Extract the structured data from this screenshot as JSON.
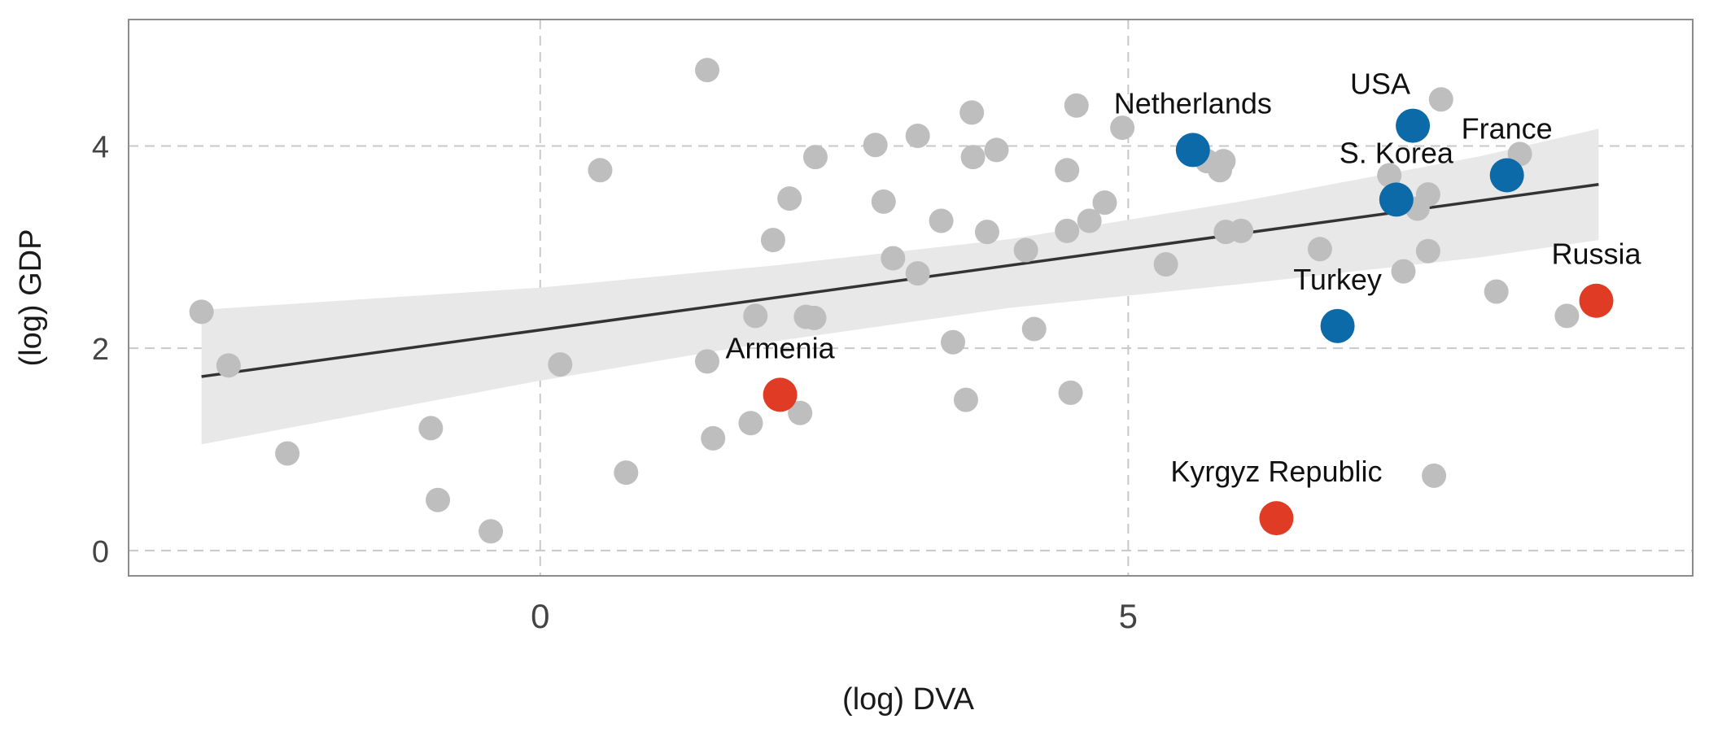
{
  "chart_data": {
    "type": "scatter",
    "title": "",
    "xlabel": "(log) DVA",
    "ylabel": "(log) GDP",
    "xlim": [
      -3.5,
      9.8
    ],
    "ylim": [
      -0.25,
      5.25
    ],
    "xticks": [
      0,
      5
    ],
    "yticks": [
      0,
      2,
      4
    ],
    "grid": true,
    "colors": {
      "background_points": "#bebebe",
      "highlight_blue": "#0d6aa8",
      "highlight_red": "#e03c25",
      "trend_line": "#333333",
      "confidence_band": "#e8e8e8"
    },
    "background_points": [
      {
        "x": -2.88,
        "y": 2.36
      },
      {
        "x": -2.65,
        "y": 1.83
      },
      {
        "x": -2.15,
        "y": 0.96
      },
      {
        "x": -0.93,
        "y": 1.21
      },
      {
        "x": -0.87,
        "y": 0.5
      },
      {
        "x": -0.42,
        "y": 0.19
      },
      {
        "x": 0.17,
        "y": 1.84
      },
      {
        "x": 0.51,
        "y": 3.76
      },
      {
        "x": 0.73,
        "y": 0.77
      },
      {
        "x": 1.42,
        "y": 4.75
      },
      {
        "x": 1.42,
        "y": 1.87
      },
      {
        "x": 1.47,
        "y": 1.11
      },
      {
        "x": 1.79,
        "y": 1.26
      },
      {
        "x": 1.83,
        "y": 2.32
      },
      {
        "x": 1.98,
        "y": 3.07
      },
      {
        "x": 2.12,
        "y": 3.48
      },
      {
        "x": 2.21,
        "y": 1.36
      },
      {
        "x": 2.26,
        "y": 2.31
      },
      {
        "x": 2.33,
        "y": 2.3
      },
      {
        "x": 2.34,
        "y": 3.89
      },
      {
        "x": 2.85,
        "y": 4.01
      },
      {
        "x": 2.92,
        "y": 3.45
      },
      {
        "x": 3.0,
        "y": 2.89
      },
      {
        "x": 3.21,
        "y": 4.1
      },
      {
        "x": 3.21,
        "y": 2.74
      },
      {
        "x": 3.41,
        "y": 3.26
      },
      {
        "x": 3.51,
        "y": 2.06
      },
      {
        "x": 3.62,
        "y": 1.49
      },
      {
        "x": 3.67,
        "y": 4.33
      },
      {
        "x": 3.68,
        "y": 3.89
      },
      {
        "x": 3.8,
        "y": 3.15
      },
      {
        "x": 3.88,
        "y": 3.96
      },
      {
        "x": 4.13,
        "y": 2.97
      },
      {
        "x": 4.2,
        "y": 2.19
      },
      {
        "x": 4.48,
        "y": 3.76
      },
      {
        "x": 4.48,
        "y": 3.16
      },
      {
        "x": 4.51,
        "y": 1.56
      },
      {
        "x": 4.56,
        "y": 4.4
      },
      {
        "x": 4.67,
        "y": 3.26
      },
      {
        "x": 4.8,
        "y": 3.44
      },
      {
        "x": 4.95,
        "y": 4.18
      },
      {
        "x": 5.32,
        "y": 2.83
      },
      {
        "x": 5.67,
        "y": 3.85
      },
      {
        "x": 5.78,
        "y": 3.76
      },
      {
        "x": 5.81,
        "y": 3.85
      },
      {
        "x": 5.83,
        "y": 3.15
      },
      {
        "x": 5.96,
        "y": 3.16
      },
      {
        "x": 6.63,
        "y": 2.98
      },
      {
        "x": 7.22,
        "y": 3.71
      },
      {
        "x": 7.34,
        "y": 2.76
      },
      {
        "x": 7.46,
        "y": 3.38
      },
      {
        "x": 7.55,
        "y": 3.52
      },
      {
        "x": 7.55,
        "y": 2.96
      },
      {
        "x": 7.6,
        "y": 0.74
      },
      {
        "x": 7.66,
        "y": 4.46
      },
      {
        "x": 8.13,
        "y": 2.56
      },
      {
        "x": 8.73,
        "y": 2.32
      },
      {
        "x": 8.33,
        "y": 3.92
      }
    ],
    "highlighted_points": [
      {
        "label": "Netherlands",
        "x": 5.55,
        "y": 3.96,
        "group": "blue"
      },
      {
        "label": "USA",
        "x": 7.42,
        "y": 4.2,
        "group": "blue"
      },
      {
        "label": "France",
        "x": 8.22,
        "y": 3.71,
        "group": "blue"
      },
      {
        "label": "S. Korea",
        "x": 7.28,
        "y": 3.47,
        "group": "blue"
      },
      {
        "label": "Turkey",
        "x": 6.78,
        "y": 2.22,
        "group": "blue"
      },
      {
        "label": "Russia",
        "x": 8.98,
        "y": 2.47,
        "group": "red"
      },
      {
        "label": "Armenia",
        "x": 2.04,
        "y": 1.54,
        "group": "red"
      },
      {
        "label": "Kyrgyz Republic",
        "x": 6.26,
        "y": 0.32,
        "group": "red"
      }
    ],
    "trend_line": {
      "x": [
        -2.88,
        9.0
      ],
      "y": [
        1.72,
        3.62
      ]
    },
    "confidence_band": {
      "x": [
        -2.88,
        0,
        2,
        4,
        6,
        8,
        9.0
      ],
      "upper": [
        2.38,
        2.6,
        2.82,
        3.08,
        3.46,
        3.9,
        4.17
      ],
      "lower": [
        1.05,
        1.68,
        2.07,
        2.4,
        2.64,
        2.9,
        3.07
      ]
    }
  }
}
